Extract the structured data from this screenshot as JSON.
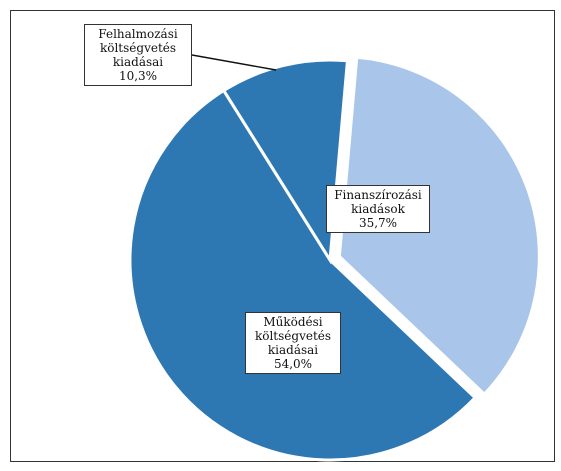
{
  "chart_data": {
    "type": "pie",
    "title": "",
    "start_angle_deg": 5,
    "direction": "clockwise",
    "slices": [
      {
        "id": "finanszirozasi",
        "label_lines": [
          "Finanszírozási",
          "kiadások"
        ],
        "value_label": "35,7%",
        "value": 35.7,
        "color": "#a9c5ea",
        "exploded": true
      },
      {
        "id": "mukodesi",
        "label_lines": [
          "Működési",
          "költségvetés",
          "kiadásai"
        ],
        "value_label": "54,0%",
        "value": 54.0,
        "color": "#2d77b3",
        "exploded": false
      },
      {
        "id": "felhalmozasi",
        "label_lines": [
          "Felhalmozási",
          "költségvetés",
          "kiadásai"
        ],
        "value_label": "10,3%",
        "value": 10.3,
        "color": "#2d77b3",
        "exploded": false
      }
    ]
  }
}
